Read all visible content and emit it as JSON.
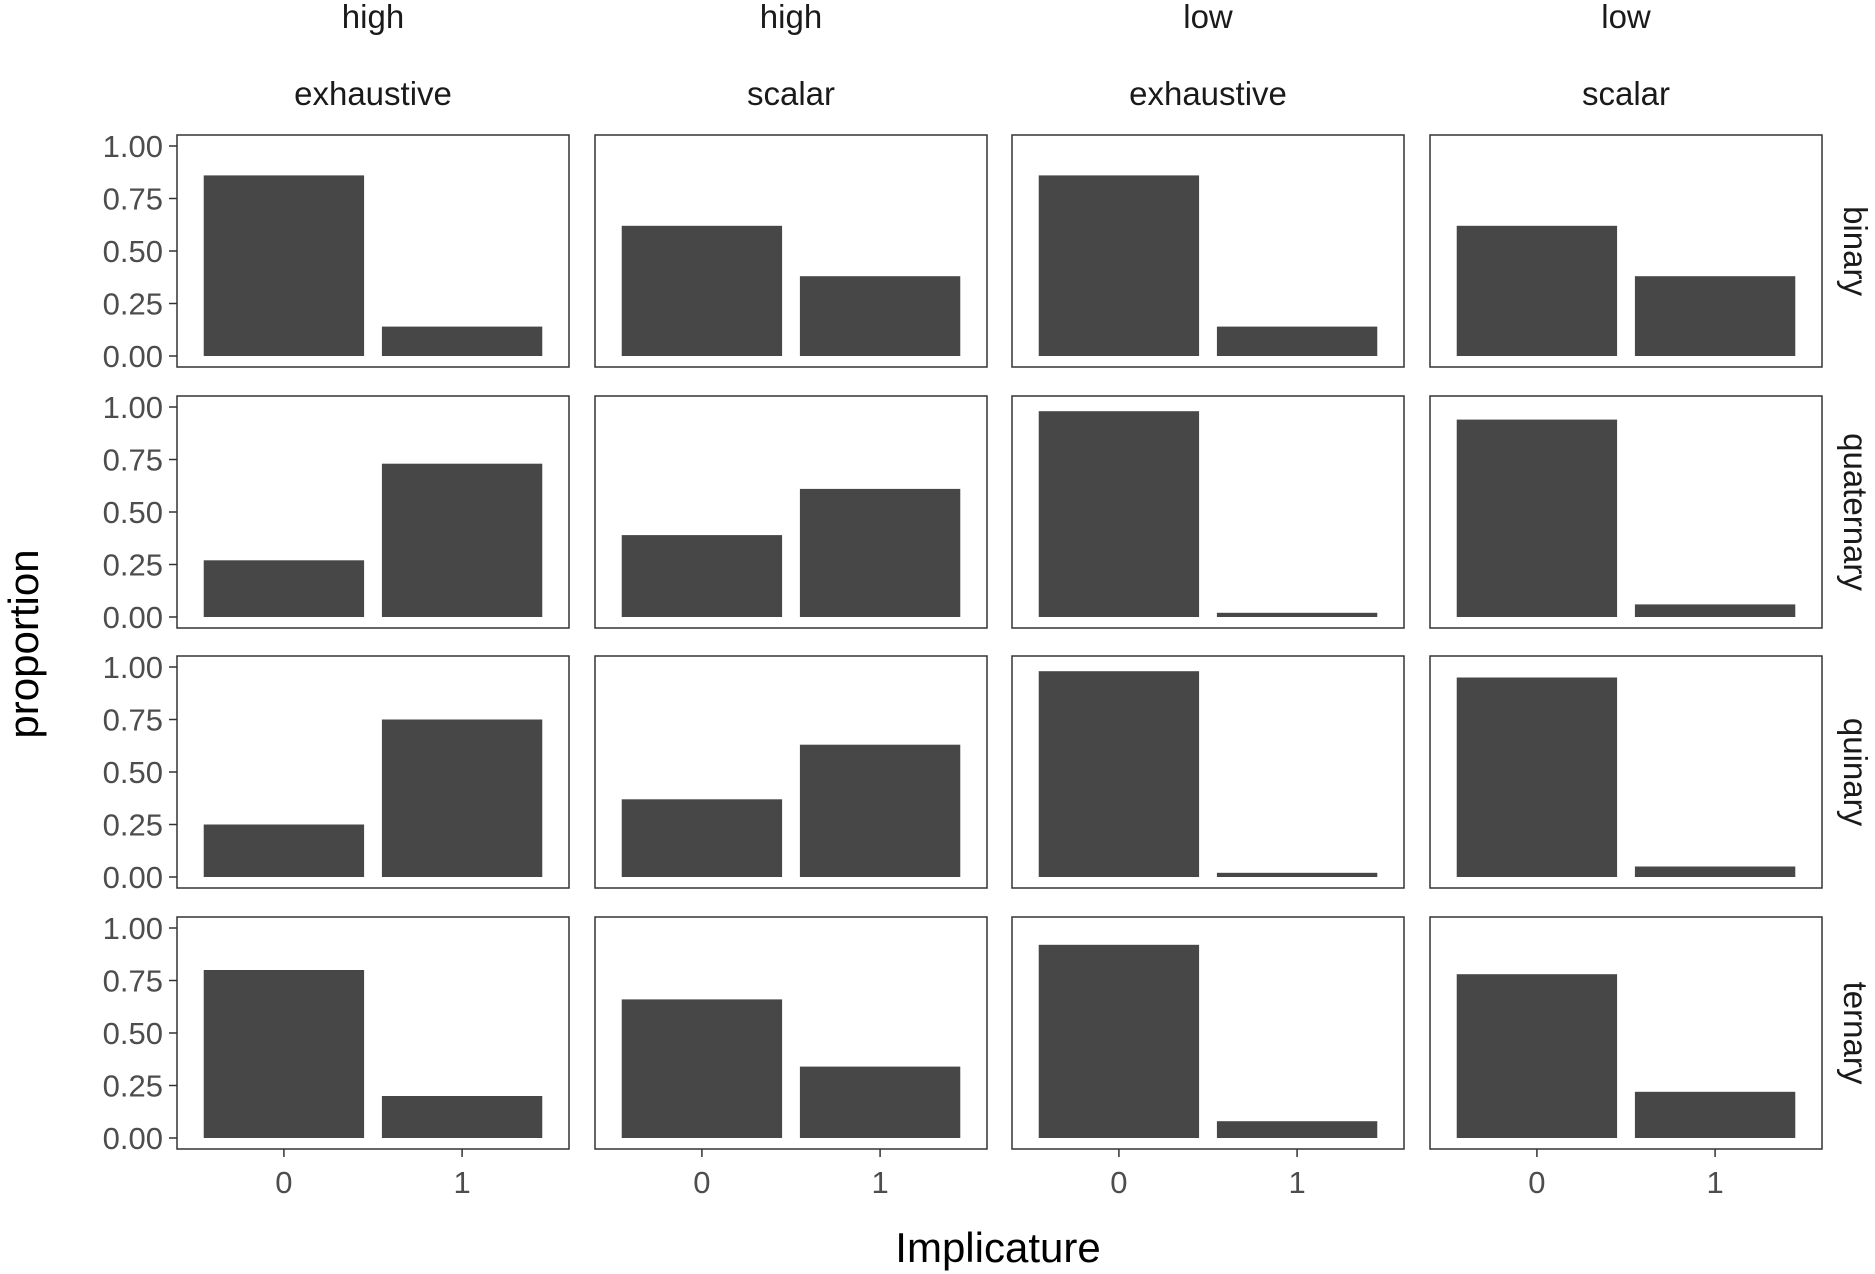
{
  "chart_data": {
    "type": "bar",
    "facet_layout": "grid",
    "xlabel": "Implicature",
    "ylabel": "proportion",
    "categories": [
      "0",
      "1"
    ],
    "ylim": [
      0,
      1
    ],
    "yticks": [
      "0.00",
      "0.25",
      "0.50",
      "0.75",
      "1.00"
    ],
    "grid": false,
    "bar_color": "#474747",
    "panel_border_color": "#333333",
    "columns": [
      {
        "strip_top": "high",
        "strip_bottom": "exhaustive"
      },
      {
        "strip_top": "high",
        "strip_bottom": "scalar"
      },
      {
        "strip_top": "low",
        "strip_bottom": "exhaustive"
      },
      {
        "strip_top": "low",
        "strip_bottom": "scalar"
      }
    ],
    "rows": [
      "binary",
      "quaternary",
      "quinary",
      "ternary"
    ],
    "values": [
      [
        [
          0.86,
          0.14
        ],
        [
          0.62,
          0.38
        ],
        [
          0.86,
          0.14
        ],
        [
          0.62,
          0.38
        ]
      ],
      [
        [
          0.27,
          0.73
        ],
        [
          0.39,
          0.61
        ],
        [
          0.98,
          0.02
        ],
        [
          0.94,
          0.06
        ]
      ],
      [
        [
          0.25,
          0.75
        ],
        [
          0.37,
          0.63
        ],
        [
          0.98,
          0.02
        ],
        [
          0.95,
          0.05
        ]
      ],
      [
        [
          0.8,
          0.2
        ],
        [
          0.66,
          0.34
        ],
        [
          0.92,
          0.08
        ],
        [
          0.78,
          0.22
        ]
      ]
    ]
  }
}
